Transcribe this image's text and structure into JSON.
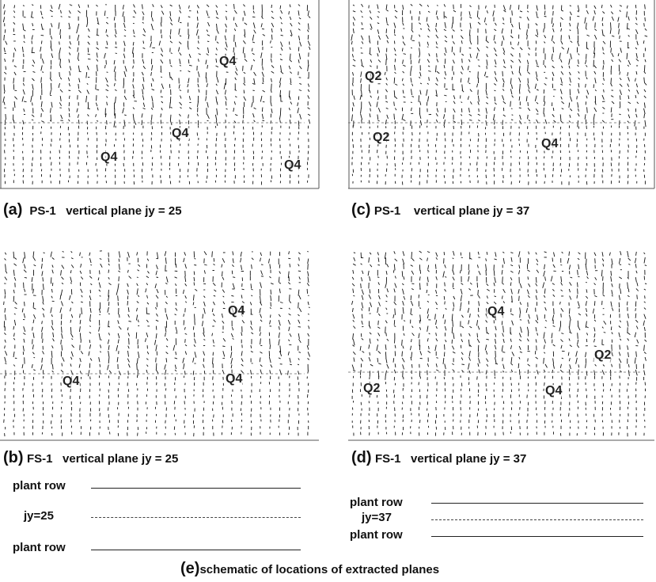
{
  "panels": [
    {
      "id": "a",
      "letter": "(a)",
      "text": "PS-1   vertical plane jy = 25",
      "labels": [
        "Q4",
        "Q4",
        "Q4",
        "Q4"
      ]
    },
    {
      "id": "c",
      "letter": "(c)",
      "text": "PS-1    vertical plane jy = 37",
      "labels": [
        "Q2",
        "Q2",
        "Q4"
      ]
    },
    {
      "id": "b",
      "letter": "(b)",
      "text": "FS-1   vertical plane jy = 25",
      "labels": [
        "Q4",
        "Q4",
        "Q4"
      ]
    },
    {
      "id": "d",
      "letter": "(d)",
      "text": "FS-1   vertical plane jy = 37",
      "labels": [
        "Q4",
        "Q2",
        "Q2",
        "Q4"
      ]
    }
  ],
  "schematic": {
    "letter": "(e)",
    "title": "schematic of locations of extracted planes",
    "left": {
      "top_row": "plant row",
      "plane": "jy=25",
      "bottom_row": "plant row"
    },
    "right": {
      "top_row": "plant row",
      "plane": "jy=37",
      "bottom_row": "plant row"
    }
  },
  "colors": {
    "arrows": "#111111",
    "frame": "#555555",
    "text": "#111111"
  }
}
